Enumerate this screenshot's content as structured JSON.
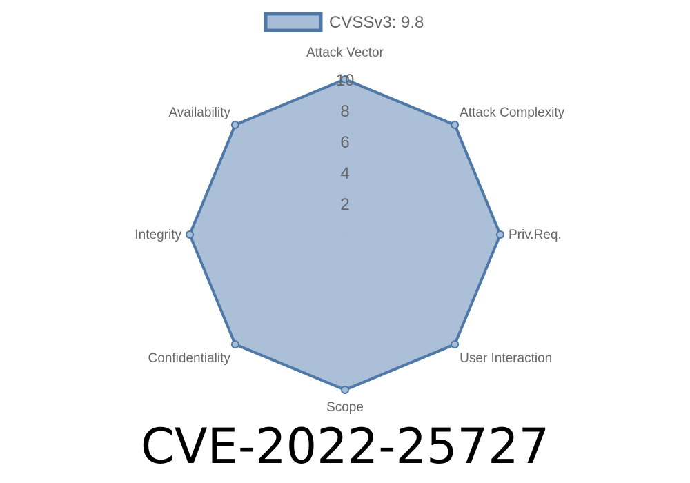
{
  "chart_data": {
    "type": "radar",
    "title": "CVE-2022-25727",
    "legend": {
      "position": "top",
      "entries": [
        "CVSSv3: 9.8"
      ]
    },
    "axes": [
      "Attack Vector",
      "Attack Complexity",
      "Priv.Req.",
      "User Interaction",
      "Scope",
      "Confidentiality",
      "Integrity",
      "Availability"
    ],
    "series": [
      {
        "name": "CVSSv3: 9.8",
        "values": [
          10,
          10,
          10,
          10,
          10,
          10,
          10,
          10
        ]
      }
    ],
    "rlim": [
      0,
      10
    ],
    "ticks": [
      "2",
      "4",
      "6",
      "8",
      "10"
    ],
    "grid": true,
    "colors": {
      "line": "#4e79a7",
      "fill": "#a7bcd6",
      "grid": "#c8ced6",
      "text": "#666666"
    }
  }
}
